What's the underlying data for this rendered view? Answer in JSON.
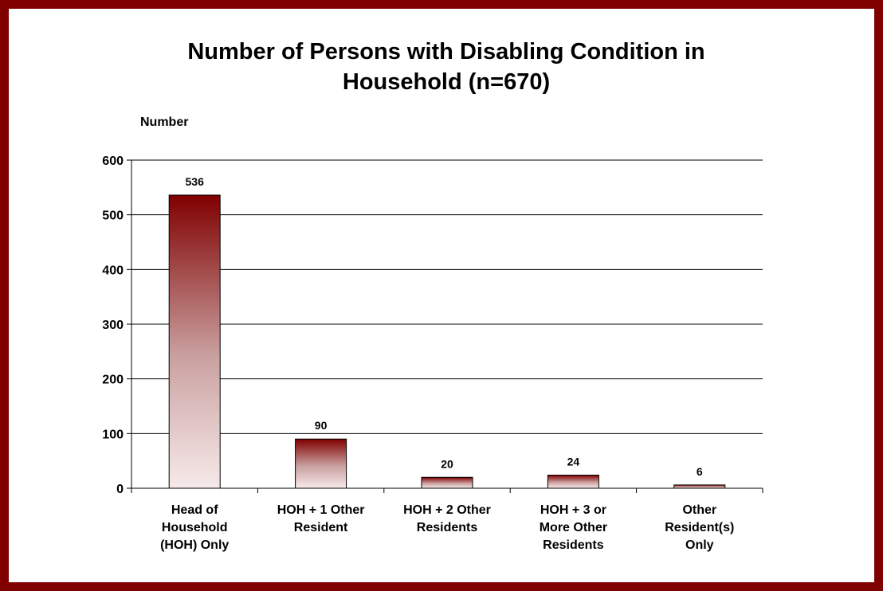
{
  "chart_data": {
    "type": "bar",
    "title_lines": [
      "Number of Persons with Disabling Condition in",
      "Household (n=670)"
    ],
    "ylabel": "Number",
    "xlabel": "",
    "ylim": [
      0,
      600
    ],
    "yticks": [
      0,
      100,
      200,
      300,
      400,
      500,
      600
    ],
    "grid": true,
    "categories": [
      [
        "Head of",
        "Household",
        "(HOH) Only"
      ],
      [
        "HOH + 1 Other",
        "Resident"
      ],
      [
        "HOH + 2 Other",
        "Residents"
      ],
      [
        "HOH + 3 or",
        "More Other",
        "Residents"
      ],
      [
        "Other",
        "Resident(s)",
        "Only"
      ]
    ],
    "values": [
      536,
      90,
      20,
      24,
      6
    ],
    "data_labels": [
      "536",
      "90",
      "20",
      "24",
      "6"
    ],
    "colors": {
      "frame": "#800000",
      "bar_top": "#800000",
      "bar_bottom": "#f7eaea"
    }
  }
}
